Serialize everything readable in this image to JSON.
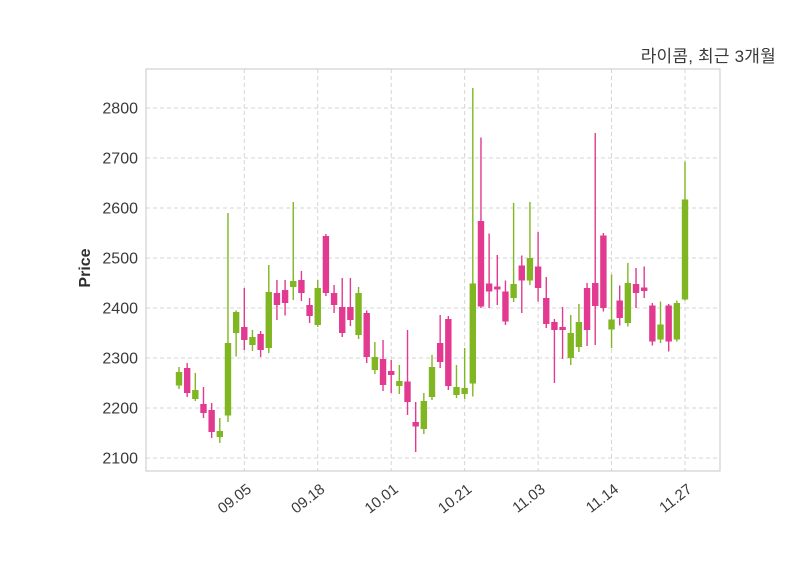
{
  "title": "라이콤, 최근 3개월",
  "axes": {
    "ylabel": "Price"
  },
  "chart_data": {
    "type": "candlestick",
    "title": "라이콤, 최근 3개월",
    "xlabel": "",
    "ylabel": "Price",
    "grid": "dashed-both-axes",
    "legend": "none",
    "ylim": [
      2074,
      2878
    ],
    "y_ticks": [
      2100,
      2200,
      2300,
      2400,
      2500,
      2600,
      2700,
      2800
    ],
    "x_tick_labels": [
      "09.05",
      "09.18",
      "10.01",
      "10.21",
      "11.03",
      "11.14",
      "11.27"
    ],
    "x_tick_indices": [
      8,
      17,
      26,
      35,
      44,
      53,
      62
    ],
    "colors": {
      "up": "#7FB622",
      "down": "#E23A90",
      "grid": "#D4D4D4",
      "border": "#D0D0D0",
      "text": "#3A3A3A",
      "background": "#FFFFFF"
    },
    "ohlc_format": [
      "open",
      "high",
      "low",
      "close"
    ],
    "ohlc": [
      [
        2245,
        2282,
        2238,
        2272
      ],
      [
        2280,
        2290,
        2222,
        2230
      ],
      [
        2218,
        2270,
        2214,
        2236
      ],
      [
        2208,
        2242,
        2180,
        2190
      ],
      [
        2196,
        2210,
        2140,
        2152
      ],
      [
        2142,
        2180,
        2130,
        2154
      ],
      [
        2185,
        2590,
        2172,
        2330
      ],
      [
        2350,
        2395,
        2303,
        2392
      ],
      [
        2362,
        2440,
        2316,
        2336
      ],
      [
        2326,
        2356,
        2314,
        2342
      ],
      [
        2348,
        2354,
        2302,
        2316
      ],
      [
        2320,
        2486,
        2310,
        2432
      ],
      [
        2430,
        2456,
        2376,
        2406
      ],
      [
        2436,
        2456,
        2385,
        2410
      ],
      [
        2442,
        2612,
        2416,
        2454
      ],
      [
        2456,
        2474,
        2414,
        2430
      ],
      [
        2406,
        2420,
        2370,
        2384
      ],
      [
        2366,
        2456,
        2362,
        2440
      ],
      [
        2544,
        2548,
        2424,
        2430
      ],
      [
        2430,
        2446,
        2390,
        2406
      ],
      [
        2402,
        2460,
        2342,
        2350
      ],
      [
        2402,
        2460,
        2364,
        2376
      ],
      [
        2346,
        2442,
        2338,
        2430
      ],
      [
        2390,
        2395,
        2290,
        2302
      ],
      [
        2276,
        2332,
        2268,
        2302
      ],
      [
        2298,
        2336,
        2234,
        2246
      ],
      [
        2274,
        2296,
        2230,
        2266
      ],
      [
        2244,
        2286,
        2228,
        2254
      ],
      [
        2253,
        2356,
        2186,
        2212
      ],
      [
        2172,
        2212,
        2112,
        2163
      ],
      [
        2158,
        2230,
        2148,
        2214
      ],
      [
        2222,
        2306,
        2216,
        2282
      ],
      [
        2330,
        2386,
        2280,
        2292
      ],
      [
        2378,
        2384,
        2236,
        2244
      ],
      [
        2226,
        2286,
        2220,
        2242
      ],
      [
        2228,
        2320,
        2218,
        2240
      ],
      [
        2249,
        2840,
        2223,
        2449
      ],
      [
        2574,
        2741,
        2400,
        2403
      ],
      [
        2449,
        2549,
        2400,
        2433
      ],
      [
        2443,
        2506,
        2406,
        2437
      ],
      [
        2433,
        2455,
        2366,
        2373
      ],
      [
        2420,
        2610,
        2412,
        2448
      ],
      [
        2485,
        2505,
        2390,
        2455
      ],
      [
        2455,
        2612,
        2446,
        2500
      ],
      [
        2483,
        2552,
        2413,
        2440
      ],
      [
        2420,
        2462,
        2360,
        2368
      ],
      [
        2372,
        2378,
        2250,
        2356
      ],
      [
        2362,
        2402,
        2298,
        2356
      ],
      [
        2300,
        2386,
        2286,
        2350
      ],
      [
        2322,
        2408,
        2312,
        2372
      ],
      [
        2440,
        2450,
        2324,
        2356
      ],
      [
        2450,
        2750,
        2326,
        2404
      ],
      [
        2545,
        2550,
        2393,
        2400
      ],
      [
        2357,
        2467,
        2320,
        2377
      ],
      [
        2415,
        2445,
        2365,
        2380
      ],
      [
        2370,
        2490,
        2363,
        2450
      ],
      [
        2448,
        2480,
        2400,
        2430
      ],
      [
        2441,
        2483,
        2420,
        2434
      ],
      [
        2405,
        2410,
        2325,
        2333
      ],
      [
        2337,
        2413,
        2330,
        2367
      ],
      [
        2405,
        2408,
        2313,
        2333
      ],
      [
        2337,
        2415,
        2333,
        2410
      ],
      [
        2417,
        2693,
        2415,
        2617
      ]
    ]
  }
}
